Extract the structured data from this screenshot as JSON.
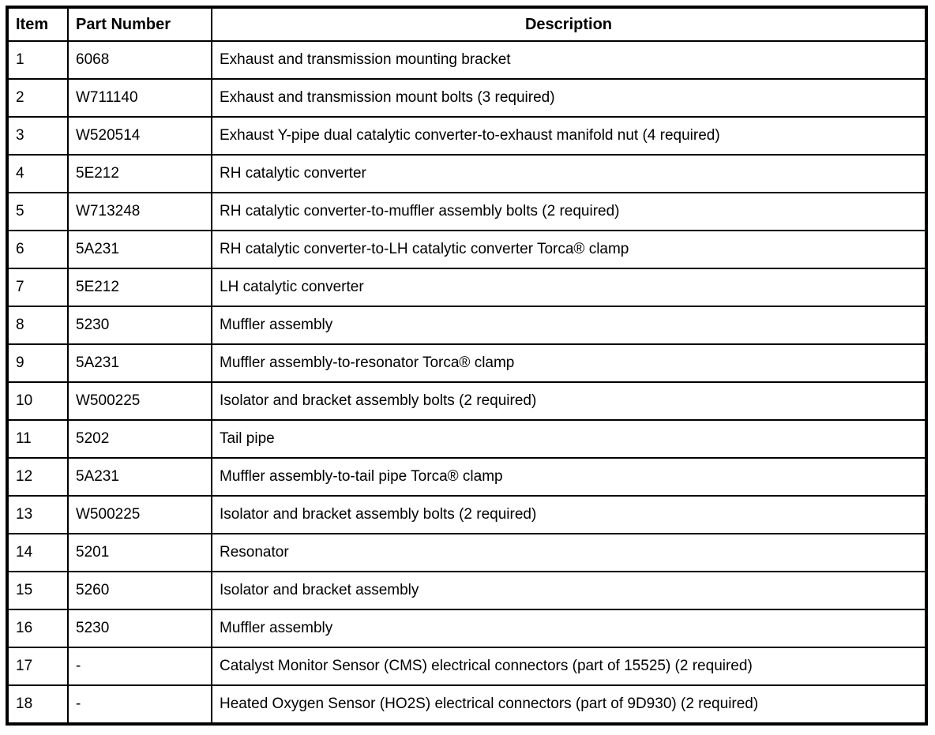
{
  "table": {
    "headers": [
      "Item",
      "Part Number",
      "Description"
    ],
    "rows": [
      {
        "item": "1",
        "part": "6068",
        "desc": "Exhaust and transmission mounting bracket"
      },
      {
        "item": "2",
        "part": "W711140",
        "desc": "Exhaust and transmission mount bolts (3 required)"
      },
      {
        "item": "3",
        "part": "W520514",
        "desc": "Exhaust Y-pipe dual catalytic converter-to-exhaust manifold nut (4 required)"
      },
      {
        "item": "4",
        "part": "5E212",
        "desc": "RH catalytic converter"
      },
      {
        "item": "5",
        "part": "W713248",
        "desc": "RH catalytic converter-to-muffler assembly bolts (2 required)"
      },
      {
        "item": "6",
        "part": "5A231",
        "desc": "RH catalytic converter-to-LH catalytic converter Torca® clamp"
      },
      {
        "item": "7",
        "part": "5E212",
        "desc": "LH catalytic converter"
      },
      {
        "item": "8",
        "part": "5230",
        "desc": "Muffler assembly"
      },
      {
        "item": "9",
        "part": "5A231",
        "desc": "Muffler assembly-to-resonator Torca® clamp"
      },
      {
        "item": "10",
        "part": "W500225",
        "desc": "Isolator and bracket assembly bolts (2 required)"
      },
      {
        "item": "11",
        "part": "5202",
        "desc": "Tail pipe"
      },
      {
        "item": "12",
        "part": "5A231",
        "desc": "Muffler assembly-to-tail pipe Torca® clamp"
      },
      {
        "item": "13",
        "part": "W500225",
        "desc": "Isolator and bracket assembly bolts (2 required)"
      },
      {
        "item": "14",
        "part": "5201",
        "desc": "Resonator"
      },
      {
        "item": "15",
        "part": "5260",
        "desc": "Isolator and bracket assembly"
      },
      {
        "item": "16",
        "part": "5230",
        "desc": "Muffler assembly"
      },
      {
        "item": "17",
        "part": "-",
        "desc": "Catalyst Monitor Sensor (CMS) electrical connectors (part of 15525) (2 required)"
      },
      {
        "item": "18",
        "part": "-",
        "desc": "Heated Oxygen Sensor (HO2S) electrical connectors (part of 9D930) (2 required)"
      }
    ]
  }
}
